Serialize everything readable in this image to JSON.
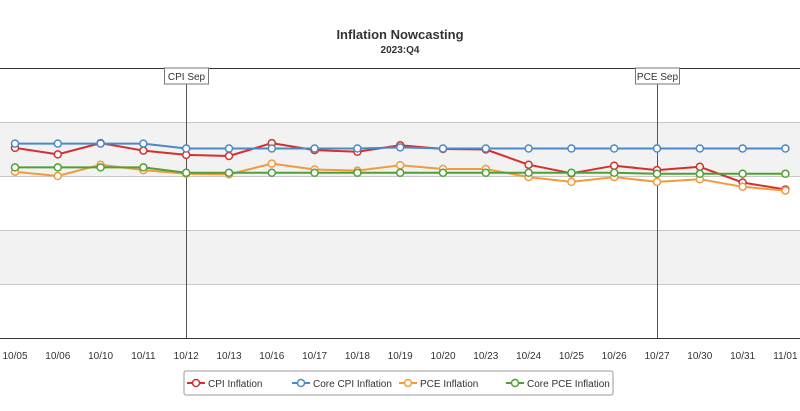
{
  "colors": {
    "cpi": "#d62f2f",
    "core_cpi": "#4a8ac9",
    "pce": "#f39a3d",
    "core_pce": "#4ea13a",
    "band": "#f2f2f2",
    "grid": "#c8c8c8",
    "axis": "#333333"
  },
  "chart_data": {
    "type": "line",
    "title": "Inflation Nowcasting",
    "subtitle": "2023:Q4",
    "xlabel": "",
    "ylabel": "",
    "grid": true,
    "legend_position": "bottom",
    "categories": [
      "10/05",
      "10/06",
      "10/10",
      "10/11",
      "10/12",
      "10/13",
      "10/16",
      "10/17",
      "10/18",
      "10/19",
      "10/20",
      "10/23",
      "10/24",
      "10/25",
      "10/26",
      "10/27",
      "10/30",
      "10/31",
      "11/01"
    ],
    "ylim": [
      0,
      5
    ],
    "series": [
      {
        "name": "CPI Inflation",
        "color_key": "cpi",
        "values": [
          3.52,
          3.4,
          3.61,
          3.47,
          3.39,
          3.37,
          3.61,
          3.48,
          3.45,
          3.57,
          3.5,
          3.49,
          3.21,
          3.05,
          3.19,
          3.11,
          3.17,
          2.88,
          2.75
        ]
      },
      {
        "name": "Core CPI Inflation",
        "color_key": "core_cpi",
        "values": [
          3.6,
          3.6,
          3.6,
          3.6,
          3.51,
          3.51,
          3.51,
          3.51,
          3.51,
          3.53,
          3.51,
          3.51,
          3.51,
          3.51,
          3.51,
          3.51,
          3.51,
          3.51,
          3.51
        ]
      },
      {
        "name": "PCE Inflation",
        "color_key": "pce",
        "values": [
          3.08,
          3.0,
          3.21,
          3.11,
          3.04,
          3.03,
          3.23,
          3.12,
          3.1,
          3.2,
          3.13,
          3.13,
          2.98,
          2.89,
          2.98,
          2.89,
          2.94,
          2.8,
          2.73
        ]
      },
      {
        "name": "Core PCE Inflation",
        "color_key": "core_pce",
        "values": [
          3.16,
          3.16,
          3.16,
          3.16,
          3.06,
          3.06,
          3.06,
          3.06,
          3.06,
          3.06,
          3.06,
          3.06,
          3.06,
          3.06,
          3.06,
          3.04,
          3.04,
          3.04,
          3.04
        ]
      }
    ],
    "annotations": [
      {
        "label": "CPI Sep",
        "at": "10/12"
      },
      {
        "label": "PCE Sep",
        "at": "10/27"
      }
    ]
  }
}
